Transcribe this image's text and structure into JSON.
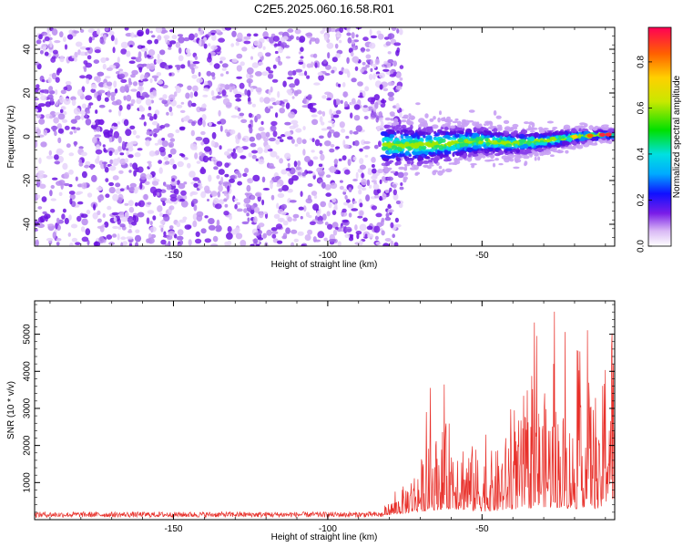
{
  "title": "C2E5.2025.060.16.58.R01",
  "chart_data": [
    {
      "type": "heatmap",
      "xlabel": "Height of straight line (km)",
      "ylabel": "Frequency (Hz)",
      "xlim": [
        -195,
        -7
      ],
      "ylim": [
        -50,
        50
      ],
      "xticks": [
        -150,
        -100,
        -50
      ],
      "xtick_labels": [
        "-150",
        "-100",
        "-50"
      ],
      "yticks": [
        -40,
        -20,
        0,
        20,
        40
      ],
      "ytick_labels": [
        "-40",
        "-20",
        "0",
        "20",
        "40"
      ],
      "noise_region_x": [
        -195,
        -80
      ],
      "signal_ridge": {
        "x": [
          -82,
          -70,
          -60,
          -50,
          -40,
          -30,
          -20,
          -10,
          -8
        ],
        "frequency": [
          -4,
          -4,
          -3,
          -2,
          -3,
          -2,
          0,
          1,
          1
        ]
      },
      "colorbar": {
        "label": "Normalized spectral amplitude",
        "range": [
          0,
          0.95
        ],
        "ticks": [
          0.0,
          0.2,
          0.4,
          0.6,
          0.8
        ],
        "tick_labels": [
          "0.0",
          "0.2",
          "0.4",
          "0.6",
          "0.8"
        ]
      },
      "grid": false,
      "legend": "none"
    },
    {
      "type": "line",
      "xlabel": "Height of straight line (km)",
      "ylabel": "SNR (10 * v/v)",
      "xlim": [
        -195,
        -7
      ],
      "ylim": [
        0,
        5900
      ],
      "xticks": [
        -150,
        -100,
        -50
      ],
      "xtick_labels": [
        "-150",
        "-100",
        "-50"
      ],
      "yticks": [
        1000,
        2000,
        3000,
        4000,
        5000
      ],
      "ytick_labels": [
        "1000",
        "2000",
        "3000",
        "4000",
        "5000"
      ],
      "series": [
        {
          "color": "#e8302a",
          "x": [
            -195,
            -150,
            -100,
            -82,
            -78,
            -72,
            -66,
            -60,
            -55,
            -50,
            -45,
            -40,
            -35,
            -30,
            -25,
            -20,
            -15,
            -12,
            -10,
            -8,
            -7
          ],
          "values": [
            150,
            160,
            160,
            180,
            350,
            900,
            1500,
            1900,
            1500,
            1200,
            1300,
            1800,
            2000,
            2400,
            2200,
            1800,
            2700,
            1400,
            3500,
            4200,
            3300
          ]
        }
      ],
      "grid": false,
      "legend": "none"
    }
  ]
}
